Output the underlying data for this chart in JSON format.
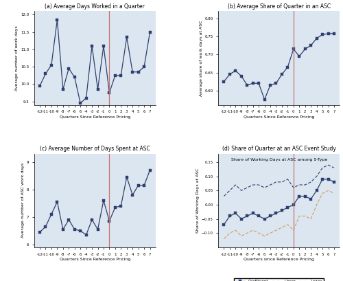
{
  "quarters": [
    -12,
    -11,
    -10,
    -9,
    -8,
    -7,
    -6,
    -5,
    -4,
    -3,
    -2,
    -1,
    0,
    1,
    2,
    3,
    4,
    5,
    6,
    7
  ],
  "panel_a": {
    "title": "(a) Average Days Worked in a Quarter",
    "ylabel": "Average number of work days",
    "xlabel": "Quarters Since Reference Pricing",
    "y": [
      9.95,
      10.3,
      10.55,
      11.85,
      9.85,
      10.45,
      10.2,
      9.45,
      9.6,
      11.1,
      9.85,
      11.1,
      9.75,
      10.25,
      10.25,
      11.35,
      10.35,
      10.35,
      10.5,
      11.5
    ],
    "ylim": [
      9.4,
      12.1
    ],
    "yticks": [
      9.5,
      10.0,
      10.5,
      11.0,
      11.5,
      12.0
    ]
  },
  "panel_b": {
    "title": "(b) Average Share of Quarter in an ASC",
    "ylabel": "Average share of work days at ASC",
    "xlabel": "Quarters Since Reference Pricing",
    "y": [
      0.625,
      0.645,
      0.655,
      0.64,
      0.615,
      0.62,
      0.62,
      0.575,
      0.615,
      0.62,
      0.645,
      0.665,
      0.715,
      0.695,
      0.715,
      0.725,
      0.745,
      0.755,
      0.758,
      0.758
    ],
    "ylim": [
      0.56,
      0.82
    ],
    "yticks": [
      0.6,
      0.65,
      0.7,
      0.75,
      0.8
    ]
  },
  "panel_c": {
    "title": "(c) Average Number of Days Spent at ASC",
    "ylabel": "Average number of ASC work days",
    "xlabel": "Quarters Since Reference Pricing",
    "y": [
      6.45,
      6.65,
      7.1,
      7.55,
      6.55,
      6.9,
      6.55,
      6.5,
      6.35,
      6.9,
      6.55,
      7.6,
      6.85,
      7.35,
      7.4,
      8.45,
      7.8,
      8.15,
      8.15,
      8.7
    ],
    "ylim": [
      5.9,
      9.3
    ],
    "yticks": [
      6.0,
      7.0,
      8.0,
      9.0
    ]
  },
  "panel_d": {
    "title": "Share of Working Days at ASC among S-Type",
    "main_title": "(d) Share of Quarter at an ASC Event Study",
    "ylabel": "Share of Working Days at ASC",
    "xlabel": "Quarters since Reference Pricing",
    "coeff": [
      -0.07,
      -0.04,
      -0.03,
      -0.05,
      -0.04,
      -0.03,
      -0.04,
      -0.05,
      -0.04,
      -0.03,
      -0.02,
      -0.01,
      0.0,
      0.03,
      0.03,
      0.02,
      0.05,
      0.09,
      0.09,
      0.08
    ],
    "upper": [
      0.03,
      0.05,
      0.07,
      0.05,
      0.06,
      0.07,
      0.07,
      0.06,
      0.07,
      0.08,
      0.08,
      0.09,
      0.06,
      0.07,
      0.07,
      0.08,
      0.1,
      0.13,
      0.14,
      0.13
    ],
    "lower": [
      -0.12,
      -0.1,
      -0.09,
      -0.11,
      -0.1,
      -0.09,
      -0.1,
      -0.11,
      -0.1,
      -0.09,
      -0.08,
      -0.07,
      -0.09,
      -0.04,
      -0.04,
      -0.05,
      0.0,
      0.04,
      0.05,
      0.04
    ],
    "ylim": [
      -0.15,
      0.18
    ],
    "yticks": [
      -0.1,
      -0.05,
      0.0,
      0.05,
      0.1,
      0.15
    ]
  },
  "vline_color": "#c87272",
  "line_color": "#2d3f6e",
  "upper_color": "#2d3f6e",
  "lower_color": "#c8a060",
  "marker": "s",
  "markersize": 2.5,
  "linewidth": 0.9,
  "bg_color": "#dce6f0"
}
